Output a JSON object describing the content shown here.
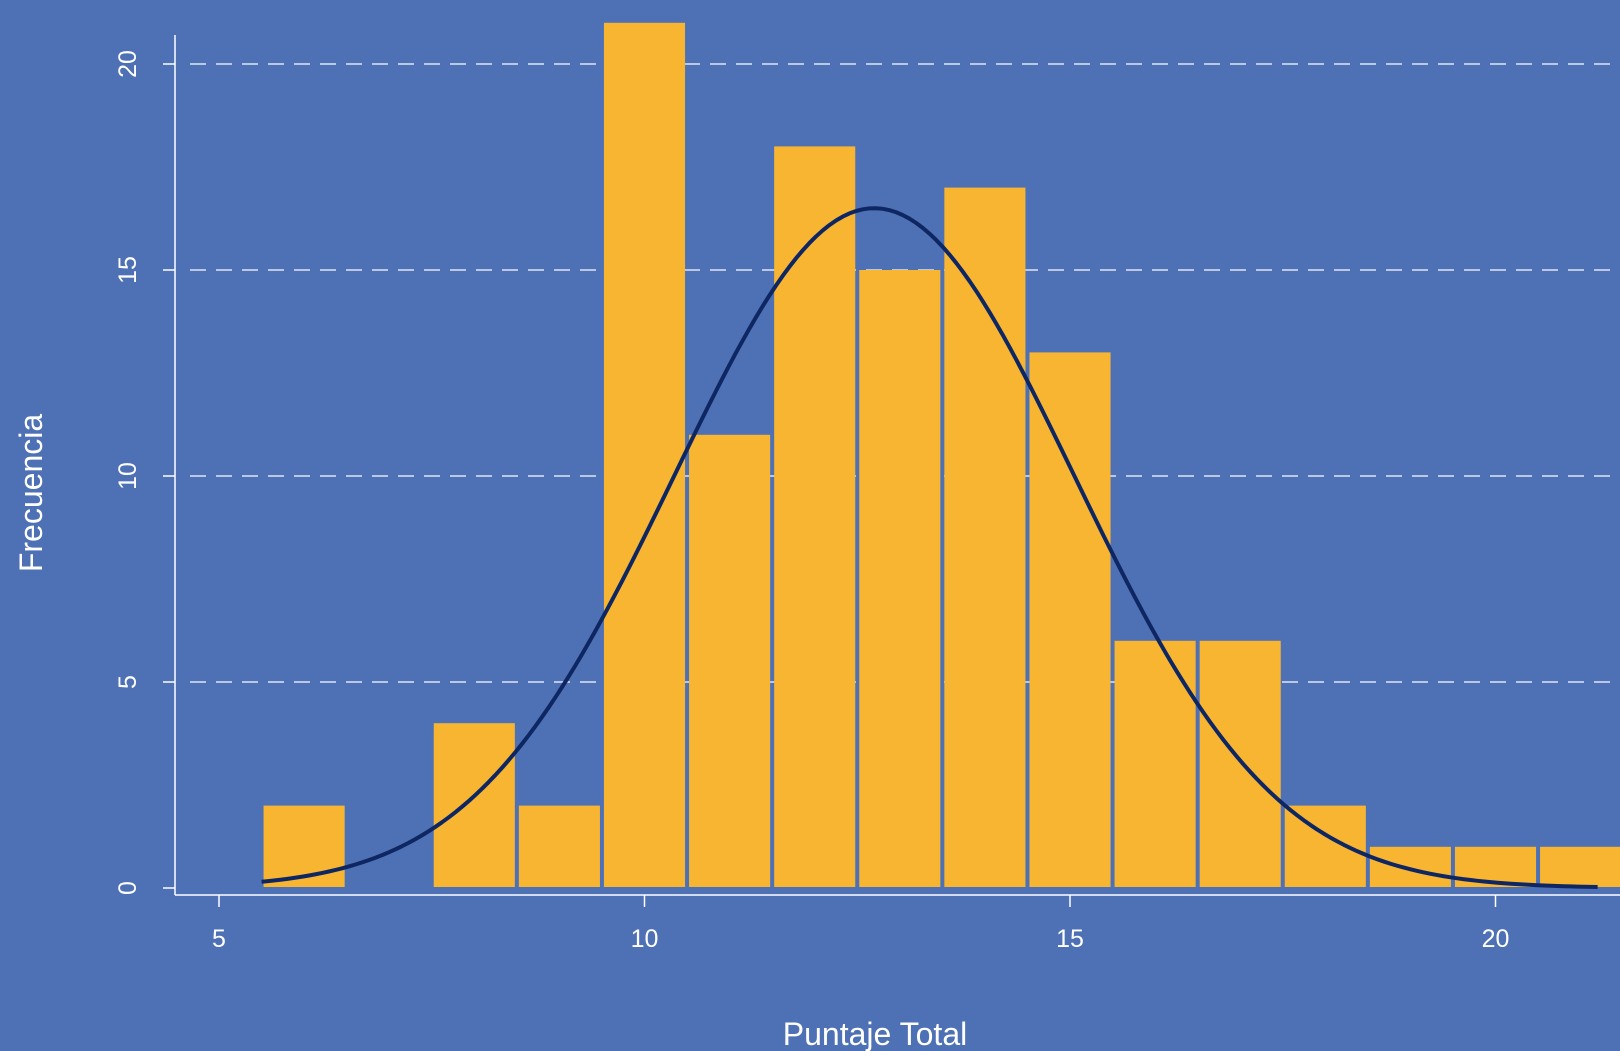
{
  "chart_data": {
    "type": "bar",
    "subtype": "histogram-with-density-curve",
    "xlabel": "Puntaje Total",
    "ylabel": "Frecuencia",
    "xlim": [
      4.5,
      21.5
    ],
    "ylim": [
      0,
      21
    ],
    "xticks": [
      5,
      10,
      15,
      20
    ],
    "yticks": [
      0,
      5,
      10,
      15,
      20
    ],
    "grid": "horizontal-dashed",
    "bins": [
      {
        "center": 6,
        "value": 2
      },
      {
        "center": 7,
        "value": 0
      },
      {
        "center": 8,
        "value": 4
      },
      {
        "center": 9,
        "value": 2
      },
      {
        "center": 10,
        "value": 21
      },
      {
        "center": 11,
        "value": 11
      },
      {
        "center": 12,
        "value": 18
      },
      {
        "center": 13,
        "value": 15
      },
      {
        "center": 14,
        "value": 17
      },
      {
        "center": 15,
        "value": 13
      },
      {
        "center": 16,
        "value": 6
      },
      {
        "center": 17,
        "value": 6
      },
      {
        "center": 18,
        "value": 2
      },
      {
        "center": 19,
        "value": 1
      },
      {
        "center": 20,
        "value": 1
      },
      {
        "center": 21,
        "value": 1
      }
    ],
    "curve": {
      "type": "normal",
      "mean": 12.7,
      "sd": 2.35,
      "peak": 16.5,
      "x_range": [
        5.5,
        21.2
      ]
    },
    "colors": {
      "background": "#4e71b5",
      "bars": "#f7b532",
      "curve": "#0e2763",
      "axis": "#ffffff",
      "grid": "#dfe6f3"
    }
  }
}
